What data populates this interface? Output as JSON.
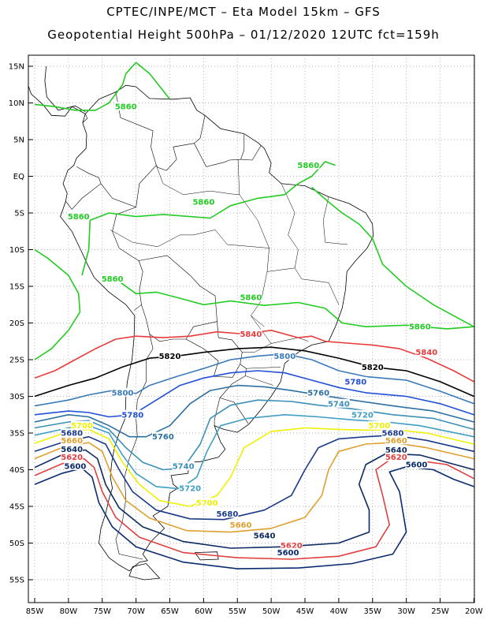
{
  "title_line1": "CPTEC/INPE/MCT –  Eta Model 15km – GFS",
  "title_line2": "Geopotential Height 500hPa – 01/12/2020 12UTC fct=159h",
  "lat_labels": [
    "15N",
    "10N",
    "5N",
    "EQ",
    "5S",
    "10S",
    "15S",
    "20S",
    "25S",
    "30S",
    "35S",
    "40S",
    "45S",
    "50S",
    "55S"
  ],
  "lon_labels": [
    "85W",
    "80W",
    "75W",
    "70W",
    "65W",
    "60W",
    "55W",
    "50W",
    "45W",
    "40W",
    "35W",
    "30W",
    "25W",
    "20W"
  ],
  "colors": {
    "c5860": "#22cc22",
    "c5840": "#e83c3c",
    "c5820": "#000000",
    "c5800": "#3a7ab8",
    "c5780": "#2050d8",
    "c5760": "#2c6fa0",
    "c5740": "#3a90b8",
    "c5720": "#3f9fc4",
    "c5700": "#f0f000",
    "c5680": "#1a3a8a",
    "c5660": "#e0a030",
    "c5640": "#0a2a60",
    "c5620": "#e04040",
    "c5600": "#0a2a70"
  },
  "contour_labels": [
    {
      "text": "5860",
      "color": "c5860",
      "lon": -71.5,
      "lat": 9.5
    },
    {
      "text": "5860",
      "color": "c5860",
      "lon": -44.5,
      "lat": 1.5
    },
    {
      "text": "5860",
      "color": "c5860",
      "lon": -78.5,
      "lat": -5.5
    },
    {
      "text": "5860",
      "color": "c5860",
      "lon": -60,
      "lat": -3.5
    },
    {
      "text": "5860",
      "color": "c5860",
      "lon": -73.5,
      "lat": -14
    },
    {
      "text": "5860",
      "color": "c5860",
      "lon": -53,
      "lat": -16.5
    },
    {
      "text": "5860",
      "color": "c5860",
      "lon": -28,
      "lat": -20.5
    },
    {
      "text": "5840",
      "color": "c5840",
      "lon": -53,
      "lat": -21.5
    },
    {
      "text": "5840",
      "color": "c5840",
      "lon": -27,
      "lat": -24
    },
    {
      "text": "5820",
      "color": "c5820",
      "lon": -65,
      "lat": -24.5
    },
    {
      "text": "5820",
      "color": "c5820",
      "lon": -35,
      "lat": -26
    },
    {
      "text": "5800",
      "color": "c5800",
      "lon": -48,
      "lat": -24.5
    },
    {
      "text": "5800",
      "color": "c5800",
      "lon": -72,
      "lat": -29.5
    },
    {
      "text": "5780",
      "color": "c5780",
      "lon": -37.5,
      "lat": -28
    },
    {
      "text": "5780",
      "color": "c5780",
      "lon": -70.5,
      "lat": -32.5
    },
    {
      "text": "5760",
      "color": "c5760",
      "lon": -43,
      "lat": -29.5
    },
    {
      "text": "5760",
      "color": "c5760",
      "lon": -66,
      "lat": -35.5
    },
    {
      "text": "5740",
      "color": "c5740",
      "lon": -40,
      "lat": -31
    },
    {
      "text": "5740",
      "color": "c5740",
      "lon": -63,
      "lat": -39.5
    },
    {
      "text": "5720",
      "color": "c5720",
      "lon": -36.5,
      "lat": -32.5
    },
    {
      "text": "5720",
      "color": "c5720",
      "lon": -62,
      "lat": -42.5
    },
    {
      "text": "5700",
      "color": "c5700",
      "lon": -34,
      "lat": -34
    },
    {
      "text": "5700",
      "color": "c5700",
      "lon": -78,
      "lat": -34
    },
    {
      "text": "5700",
      "color": "c5700",
      "lon": -59.5,
      "lat": -44.5
    },
    {
      "text": "5680",
      "color": "c5680",
      "lon": -79.5,
      "lat": -35
    },
    {
      "text": "5680",
      "color": "c5680",
      "lon": -32,
      "lat": -35
    },
    {
      "text": "5680",
      "color": "c5680",
      "lon": -56.5,
      "lat": -46
    },
    {
      "text": "5660",
      "color": "c5660",
      "lon": -79.5,
      "lat": -36
    },
    {
      "text": "5660",
      "color": "c5660",
      "lon": -31.5,
      "lat": -36
    },
    {
      "text": "5660",
      "color": "c5660",
      "lon": -54.5,
      "lat": -47.5
    },
    {
      "text": "5640",
      "color": "c5640",
      "lon": -79.5,
      "lat": -37.2
    },
    {
      "text": "5640",
      "color": "c5640",
      "lon": -31.5,
      "lat": -37.3
    },
    {
      "text": "5640",
      "color": "c5640",
      "lon": -51,
      "lat": -49
    },
    {
      "text": "5620",
      "color": "c5620",
      "lon": -79.5,
      "lat": -38.3
    },
    {
      "text": "5620",
      "color": "c5620",
      "lon": -31.5,
      "lat": -38.3
    },
    {
      "text": "5620",
      "color": "c5620",
      "lon": -47,
      "lat": -50.3
    },
    {
      "text": "5600",
      "color": "c5600",
      "lon": -79,
      "lat": -39.5
    },
    {
      "text": "5600",
      "color": "c5600",
      "lon": -28.5,
      "lat": -39.3
    },
    {
      "text": "5600",
      "color": "c5600",
      "lon": -47.5,
      "lat": -51.3
    }
  ]
}
